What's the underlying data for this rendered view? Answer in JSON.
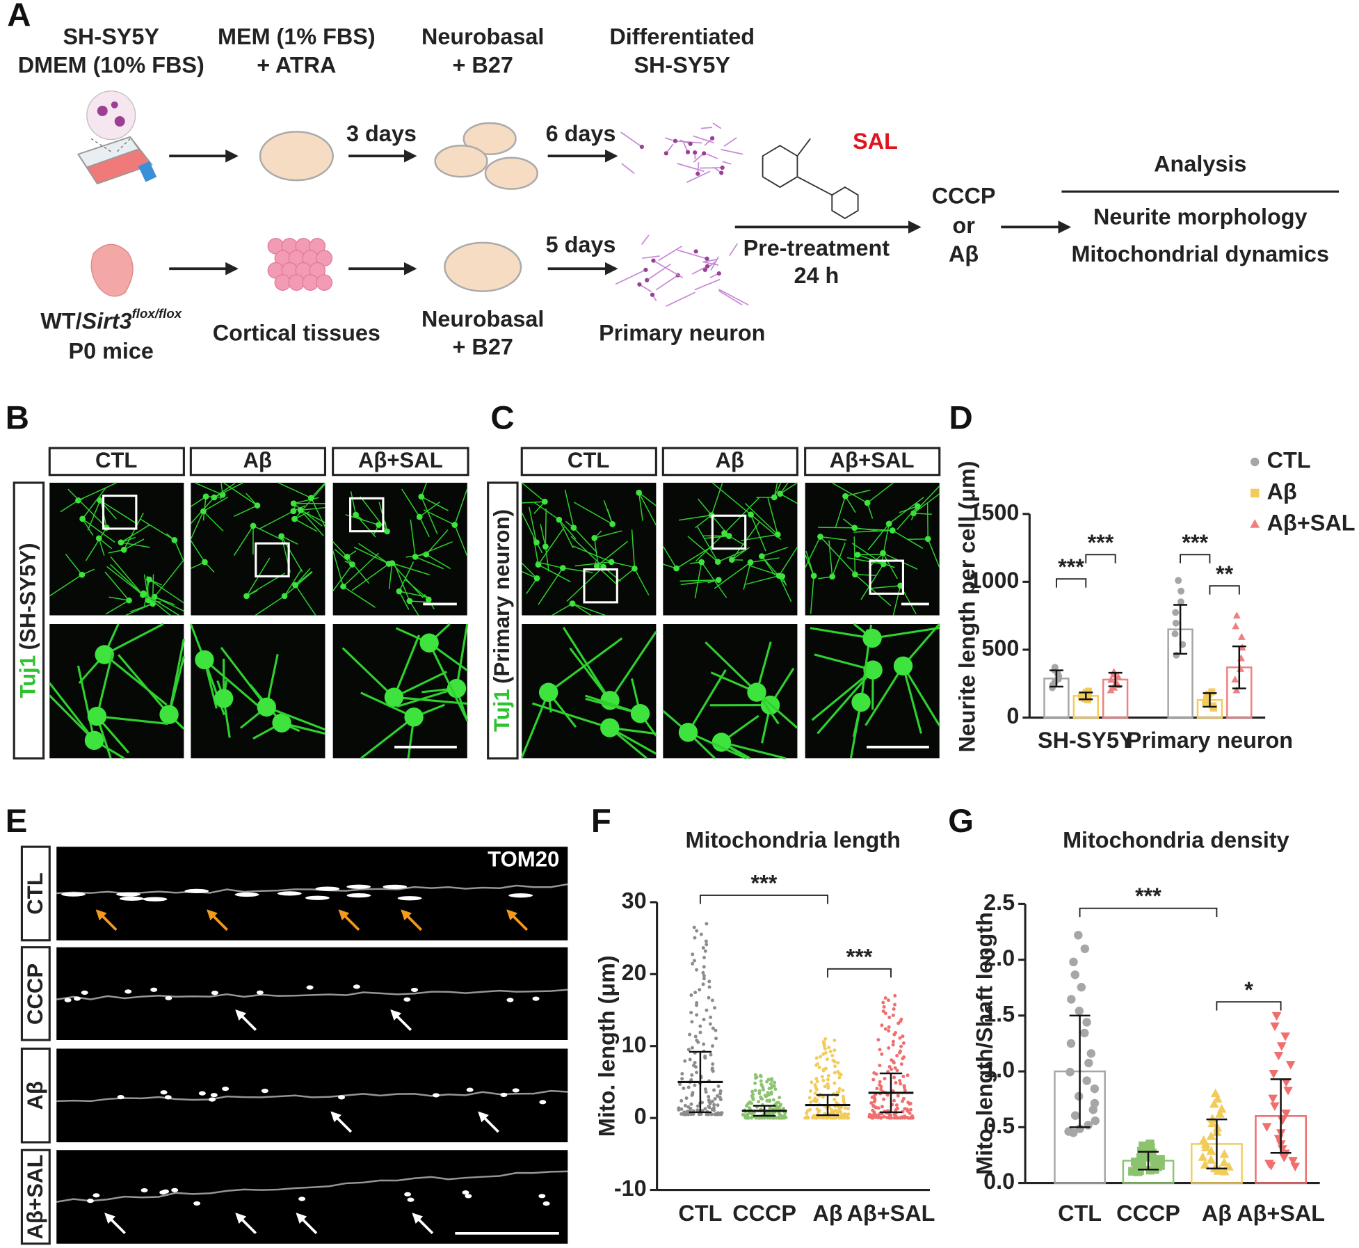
{
  "panels": [
    "A",
    "B",
    "C",
    "D",
    "E",
    "F",
    "G"
  ],
  "scheme": {
    "cell_line": [
      "SH-SY5Y",
      "DMEM (10% FBS)"
    ],
    "step1_medium": [
      "MEM (1% FBS)",
      "+ ATRA"
    ],
    "step2_medium": [
      "Neurobasal",
      "+ B27"
    ],
    "differentiated": [
      "Differentiated",
      "SH-SY5Y"
    ],
    "durations": [
      "3 days",
      "6 days",
      "5 days"
    ],
    "compound": "SAL",
    "pretreatment": [
      "Pre-treatment",
      "24 h"
    ],
    "insults": [
      "CCCP",
      "or",
      "Aβ"
    ],
    "analysis": {
      "title": "Analysis",
      "items": [
        "Neurite morphology",
        "Mitochondrial dynamics"
      ]
    },
    "mice": {
      "genotype": [
        "WT/",
        "Sirt3",
        "flox/flox"
      ],
      "age": "P0 mice"
    },
    "tissue": "Cortical tissues",
    "primary_medium": [
      "Neurobasal",
      "+ B27"
    ],
    "primary": "Primary neuron"
  },
  "imaging": {
    "conditions": [
      "CTL",
      "Aβ",
      "Aβ+SAL"
    ],
    "b_stain": [
      "Tuj1",
      "(SH-SY5Y)"
    ],
    "c_stain": [
      "Tuj1",
      "(Primary neuron)"
    ],
    "e_conditions": [
      "CTL",
      "CCCP",
      "Aβ",
      "Aβ+SAL"
    ],
    "e_stain": "TOM20"
  },
  "chart_data": [
    {
      "type": "bar",
      "categories": [
        "SH-SY5Y",
        "Primary neuron"
      ],
      "ylabel": "Neurite length per cell (μm)",
      "ylim": [
        0,
        1500
      ],
      "yticks": [
        0,
        500,
        1000,
        1500
      ],
      "legend": "top-right",
      "series": [
        {
          "name": "CTL",
          "color": "#a6a6a6",
          "marker": "circle",
          "values": [
            288,
            650
          ],
          "errors": [
            60,
            180
          ],
          "ranges": [
            [
              220,
              370
            ],
            [
              460,
              1010
            ]
          ]
        },
        {
          "name": "Aβ",
          "color": "#f2cc5a",
          "marker": "square",
          "values": [
            160,
            130
          ],
          "errors": [
            25,
            50
          ],
          "ranges": [
            [
              130,
              195
            ],
            [
              70,
              190
            ]
          ]
        },
        {
          "name": "Aβ+SAL",
          "color": "#f08080",
          "marker": "triangle",
          "values": [
            280,
            370
          ],
          "errors": [
            50,
            155
          ],
          "ranges": [
            [
              200,
              335
            ],
            [
              200,
              750
            ]
          ]
        }
      ],
      "annotations": [
        {
          "text": "***",
          "group": 0,
          "between": [
            0,
            1
          ]
        },
        {
          "text": "***",
          "group": 0,
          "between": [
            1,
            2
          ]
        },
        {
          "text": "***",
          "group": 1,
          "between": [
            0,
            1
          ]
        },
        {
          "text": "**",
          "group": 1,
          "between": [
            1,
            2
          ]
        }
      ]
    },
    {
      "type": "scatter",
      "title": "Mitochondria length",
      "ylabel": "Mito. length (μm)",
      "categories": [
        "CTL",
        "CCCP",
        "Aβ",
        "Aβ+SAL"
      ],
      "colors": [
        "#8c8c8c",
        "#8cc36e",
        "#f2cc5a",
        "#ef6f6f"
      ],
      "values": [
        5,
        1,
        1.8,
        3.5
      ],
      "errors": [
        4.2,
        0.7,
        1.4,
        2.7
      ],
      "ranges": [
        [
          0.5,
          27
        ],
        [
          0,
          6
        ],
        [
          0,
          11
        ],
        [
          0,
          17
        ]
      ],
      "ylim": [
        -10,
        30
      ],
      "yticks": [
        -10,
        0,
        10,
        20,
        30
      ],
      "annotations": [
        {
          "text": "***",
          "between": [
            0,
            2
          ]
        },
        {
          "text": "***",
          "between": [
            2,
            3
          ]
        }
      ]
    },
    {
      "type": "bar",
      "title": "Mitochondria density",
      "ylabel": "Mito. length/Shaft length",
      "categories": [
        "CTL",
        "CCCP",
        "Aβ",
        "Aβ+SAL"
      ],
      "colors": [
        "#a6a6a6",
        "#8cc36e",
        "#f2cc5a",
        "#ef6f6f"
      ],
      "markers": [
        "circle",
        "square",
        "triangle",
        "triangle-down"
      ],
      "values": [
        1.0,
        0.2,
        0.35,
        0.6
      ],
      "errors": [
        0.5,
        0.08,
        0.22,
        0.33
      ],
      "ranges": [
        [
          0.45,
          2.22
        ],
        [
          0.1,
          0.35
        ],
        [
          0.1,
          0.8
        ],
        [
          0.15,
          1.5
        ]
      ],
      "ylim": [
        0,
        2.5
      ],
      "yticks": [
        {
          "value": 0,
          "label": "0.0"
        },
        0.5,
        {
          "value": 1,
          "label": "1.0"
        },
        1.5,
        {
          "value": 2,
          "label": "2.0"
        },
        2.5
      ],
      "annotations": [
        {
          "text": "***",
          "between": [
            0,
            2
          ]
        },
        {
          "text": "*",
          "between": [
            2,
            3
          ]
        }
      ]
    }
  ]
}
